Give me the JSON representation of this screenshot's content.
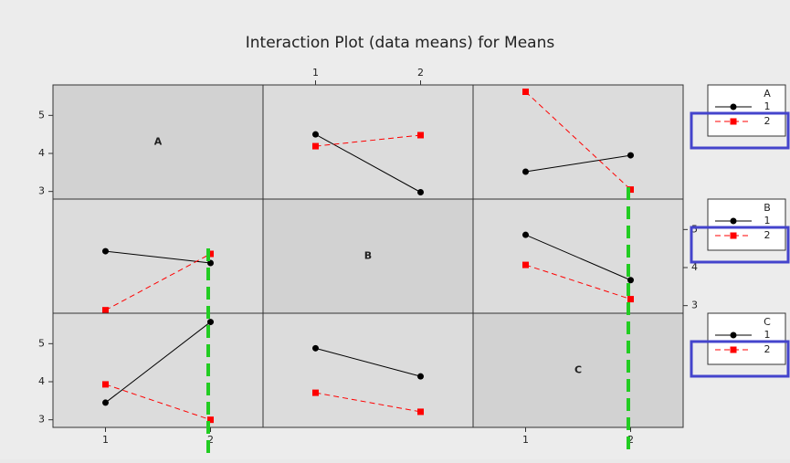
{
  "chart_data": {
    "type": "interaction",
    "title": "Interaction Plot (data means) for Means",
    "xlim": [
      0.5,
      2.5
    ],
    "xticks": [
      1,
      2
    ],
    "ylim": [
      2.8,
      5.8
    ],
    "yticks": [
      3,
      4,
      5
    ],
    "colors": [
      "#000000",
      "#ff0000"
    ],
    "markers": [
      "circle",
      "square"
    ],
    "rows": [
      {
        "factor": "A",
        "legend": [
          "1",
          "2"
        ],
        "panels": [
          null,
          [
            [
              4.5,
              2.98
            ],
            [
              4.19,
              4.48
            ]
          ],
          [
            [
              3.52,
              3.95
            ],
            [
              5.62,
              3.05
            ]
          ]
        ]
      },
      {
        "factor": "B",
        "legend": [
          "1",
          "2"
        ],
        "panels": [
          [
            [
              4.43,
              4.12
            ],
            [
              2.88,
              4.36
            ]
          ],
          null,
          [
            [
              4.86,
              3.67
            ],
            [
              4.07,
              3.17
            ]
          ]
        ]
      },
      {
        "factor": "C",
        "legend": [
          "1",
          "2"
        ],
        "panels": [
          [
            [
              3.45,
              5.57
            ],
            [
              3.93,
              3.0
            ]
          ],
          [
            [
              4.88,
              4.14
            ],
            [
              3.71,
              3.21
            ]
          ],
          null
        ]
      }
    ]
  }
}
